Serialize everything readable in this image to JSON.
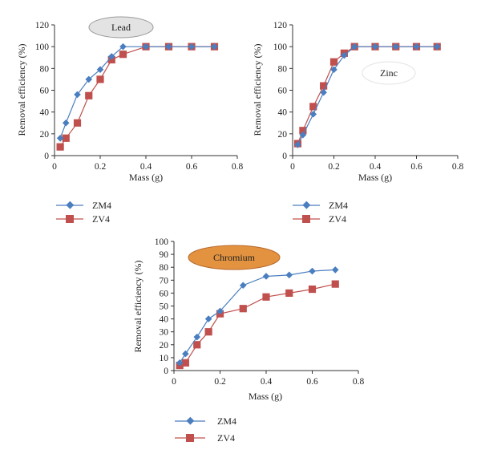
{
  "colors": {
    "zm4": "#4a7ebf",
    "zv4": "#c0504d",
    "lead_badge": "#e3e3e3",
    "chromium_badge": "#e39340",
    "zinc_badge": "#ffffff"
  },
  "chart_data": [
    {
      "type": "line",
      "title": "Lead",
      "xlabel": "Mass (g)",
      "ylabel": "Removal efficiency (%)",
      "xlim": [
        0,
        0.8
      ],
      "ylim": [
        0,
        120
      ],
      "xticks": [
        "0",
        "0.2",
        "0.4",
        "0.6",
        "0.8"
      ],
      "yticks": [
        "0",
        "20",
        "40",
        "60",
        "80",
        "100",
        "120"
      ],
      "legend": [
        "ZM4",
        "ZV4"
      ],
      "series": [
        {
          "name": "ZM4",
          "marker": "diamond",
          "x": [
            0.025,
            0.05,
            0.1,
            0.15,
            0.2,
            0.25,
            0.3,
            0.4,
            0.5,
            0.6,
            0.7
          ],
          "y": [
            16,
            30,
            56,
            70,
            79,
            91,
            100,
            100,
            100,
            100,
            100
          ]
        },
        {
          "name": "ZV4",
          "marker": "square",
          "x": [
            0.025,
            0.05,
            0.1,
            0.15,
            0.2,
            0.25,
            0.3,
            0.4,
            0.5,
            0.6,
            0.7
          ],
          "y": [
            8,
            16,
            30,
            55,
            70,
            88,
            93,
            100,
            100,
            100,
            100
          ]
        }
      ]
    },
    {
      "type": "line",
      "title": "Zinc",
      "xlabel": "Mass (g)",
      "ylabel": "Removal efficiency (%)",
      "xlim": [
        0,
        0.8
      ],
      "ylim": [
        0,
        120
      ],
      "xticks": [
        "0",
        "0.2",
        "0.4",
        "0.6",
        "0.8"
      ],
      "yticks": [
        "0",
        "20",
        "40",
        "60",
        "80",
        "100",
        "120"
      ],
      "legend": [
        "ZM4",
        "ZV4"
      ],
      "series": [
        {
          "name": "ZM4",
          "marker": "diamond",
          "x": [
            0.025,
            0.05,
            0.1,
            0.15,
            0.2,
            0.25,
            0.3,
            0.4,
            0.5,
            0.6,
            0.7
          ],
          "y": [
            10,
            19,
            38,
            58,
            79,
            92,
            100,
            100,
            100,
            100,
            100
          ]
        },
        {
          "name": "ZV4",
          "marker": "square",
          "x": [
            0.025,
            0.05,
            0.1,
            0.15,
            0.2,
            0.25,
            0.3,
            0.4,
            0.5,
            0.6,
            0.7
          ],
          "y": [
            11,
            23,
            45,
            64,
            86,
            94,
            100,
            100,
            100,
            100,
            100
          ]
        }
      ]
    },
    {
      "type": "line",
      "title": "Chromium",
      "xlabel": "Mass (g)",
      "ylabel": "Removal efficiency (%)",
      "xlim": [
        0,
        0.8
      ],
      "ylim": [
        0,
        100
      ],
      "xticks": [
        "0",
        "0.2",
        "0.4",
        "0.6",
        "0.8"
      ],
      "yticks": [
        "0",
        "10",
        "20",
        "30",
        "40",
        "50",
        "60",
        "70",
        "80",
        "90",
        "100"
      ],
      "legend": [
        "ZM4",
        "ZV4"
      ],
      "series": [
        {
          "name": "ZM4",
          "marker": "diamond",
          "x": [
            0.025,
            0.05,
            0.1,
            0.15,
            0.2,
            0.3,
            0.4,
            0.5,
            0.6,
            0.7
          ],
          "y": [
            6,
            13,
            26,
            40,
            46,
            66,
            73,
            74,
            77,
            78
          ]
        },
        {
          "name": "ZV4",
          "marker": "square",
          "x": [
            0.025,
            0.05,
            0.1,
            0.15,
            0.2,
            0.3,
            0.4,
            0.5,
            0.6,
            0.7
          ],
          "y": [
            4,
            6,
            20,
            30,
            44,
            48,
            57,
            60,
            63,
            67
          ]
        }
      ]
    }
  ]
}
